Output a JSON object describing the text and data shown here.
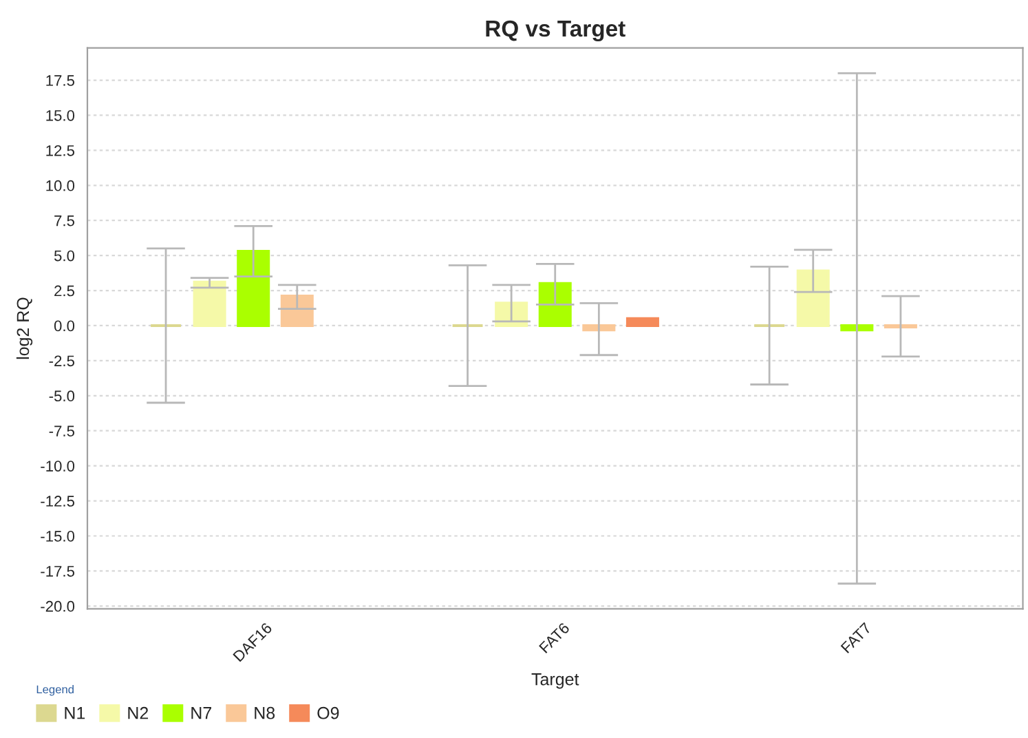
{
  "chart_data": {
    "type": "bar",
    "title": "RQ vs Target",
    "xlabel": "Target",
    "ylabel": "log2 RQ",
    "legend_title": "Legend",
    "categories": [
      "DAF16",
      "FAT6",
      "FAT7"
    ],
    "series": [
      {
        "name": "N1",
        "color": "#dcd890",
        "values": [
          0,
          0,
          0
        ],
        "errors": [
          [
            -5.5,
            5.5
          ],
          [
            -4.3,
            4.3
          ],
          [
            -4.2,
            4.2
          ]
        ]
      },
      {
        "name": "N2",
        "color": "#f5f9a8",
        "values": [
          3.1,
          1.6,
          3.9
        ],
        "errors": [
          [
            2.7,
            3.4
          ],
          [
            0.3,
            2.9
          ],
          [
            2.4,
            5.4
          ]
        ]
      },
      {
        "name": "N7",
        "color": "#aaff00",
        "values": [
          5.3,
          3.0,
          -0.3
        ],
        "errors": [
          [
            3.5,
            7.1
          ],
          [
            1.5,
            4.4
          ],
          [
            -18.4,
            18.0
          ]
        ]
      },
      {
        "name": "N8",
        "color": "#fac898",
        "values": [
          2.1,
          -0.3,
          -0.1
        ],
        "errors": [
          [
            1.2,
            2.9
          ],
          [
            -2.1,
            1.6
          ],
          [
            -2.2,
            2.1
          ]
        ]
      },
      {
        "name": "O9",
        "color": "#f58a5a",
        "values": [
          null,
          0.5,
          null
        ],
        "errors": [
          null,
          null,
          null
        ]
      }
    ],
    "ylim": [
      -20.2,
      19.8
    ],
    "yticks": [
      {
        "value": -20,
        "label": "-20.0"
      },
      {
        "value": -17.5,
        "label": "-17.5"
      },
      {
        "value": -15,
        "label": "-15.0"
      },
      {
        "value": -12.5,
        "label": "-12.5"
      },
      {
        "value": -10,
        "label": "-10.0"
      },
      {
        "value": -7.5,
        "label": "-7.5"
      },
      {
        "value": -5,
        "label": "-5.0"
      },
      {
        "value": -2.5,
        "label": "-2.5"
      },
      {
        "value": 0,
        "label": "0.0"
      },
      {
        "value": 2.5,
        "label": "2.5"
      },
      {
        "value": 5,
        "label": "5.0"
      },
      {
        "value": 7.5,
        "label": "7.5"
      },
      {
        "value": 10,
        "label": "10.0"
      },
      {
        "value": 12.5,
        "label": "12.5"
      },
      {
        "value": 15,
        "label": "15.0"
      },
      {
        "value": 17.5,
        "label": "17.5"
      }
    ],
    "grid": "y",
    "legend": "bottom"
  }
}
